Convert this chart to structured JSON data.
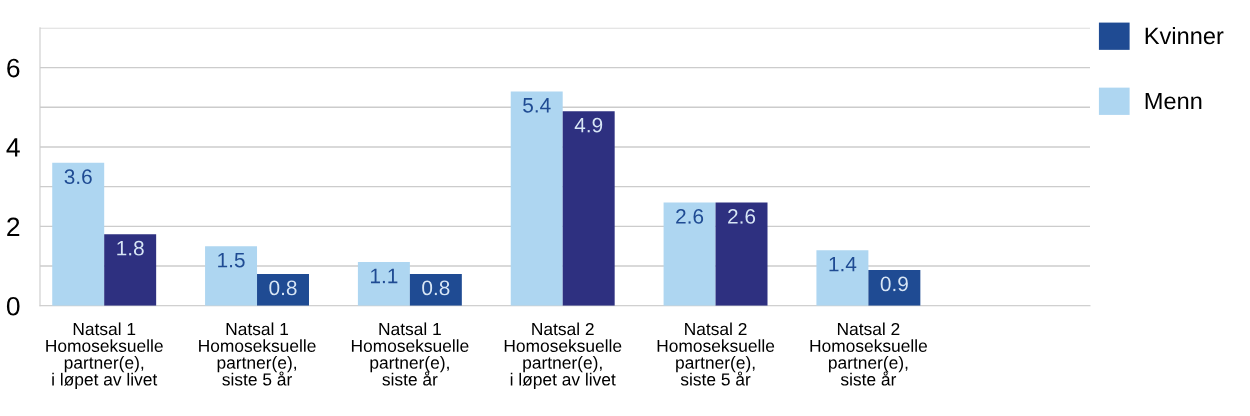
{
  "chart_data": {
    "type": "bar",
    "categories": [
      "Natsal 1\nHomoseksuelle\npartner(e),\ni løpet av livet",
      "Natsal 1\nHomoseksuelle\npartner(e),\nsiste 5 år",
      "Natsal 1\nHomoseksuelle\npartner(e),\nsiste år",
      "Natsal 2\nHomoseksuelle\npartner(e),\ni løpet av livet",
      "Natsal 2\nHomoseksuelle\npartner(e),\nsiste 5 år",
      "Natsal 2\nHomoseksuelle\npartner(e),\nsiste år"
    ],
    "series": [
      {
        "name": "Menn",
        "color": "#aed6f1",
        "values": [
          3.6,
          1.5,
          1.1,
          5.4,
          2.6,
          1.4
        ]
      },
      {
        "name": "Kvinner",
        "color": "#1f4b93",
        "colors": [
          "#2e3080",
          "#1f4b93",
          "#1f4b93",
          "#2e3080",
          "#2e3080",
          "#1f4b93"
        ],
        "values": [
          1.8,
          0.8,
          0.8,
          4.9,
          2.6,
          0.9
        ]
      }
    ],
    "ylim": [
      0,
      7
    ],
    "yticks": [
      0,
      {
        "value": 1,
        "label": null
      },
      2,
      {
        "value": 3,
        "label": null
      },
      4,
      {
        "value": 5,
        "label": null
      },
      6,
      {
        "value": 7,
        "label": null
      }
    ],
    "grid": "y",
    "legend": "top right",
    "data_labels": true
  }
}
